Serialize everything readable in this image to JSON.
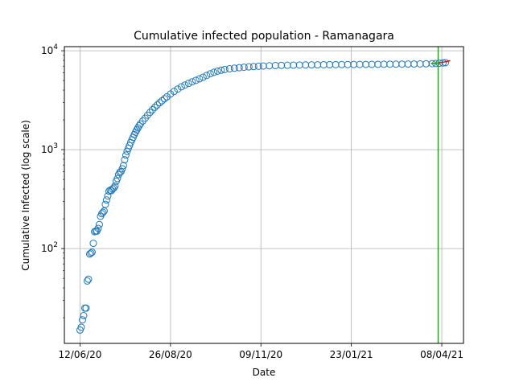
{
  "chart_data": {
    "type": "scatter",
    "title": "Cumulative infected population - Ramanagara",
    "xlabel": "Date",
    "ylabel": "Cumulative Infected (log scale)",
    "y_scale": "log",
    "y_tick_labels": [
      {
        "value": 100,
        "label": "10",
        "exp": "2"
      },
      {
        "value": 1000,
        "label": "10",
        "exp": "3"
      },
      {
        "value": 10000,
        "label": "10",
        "exp": "4"
      }
    ],
    "x_tick_labels": [
      {
        "value": "2020-06-12",
        "label": "12/06/20"
      },
      {
        "value": "2020-08-26",
        "label": "26/08/20"
      },
      {
        "value": "2020-11-09",
        "label": "09/11/20"
      },
      {
        "value": "2021-01-23",
        "label": "23/01/21"
      },
      {
        "value": "2021-04-08",
        "label": "08/04/21"
      }
    ],
    "xlim": [
      "2020-05-30",
      "2021-04-26"
    ],
    "ylim": [
      11,
      11000
    ],
    "grid": true,
    "colors": {
      "observed": "#1f77b4",
      "fit": "#ff0000",
      "marker_line": "#2ca02c",
      "grid": "#b0b0b0"
    },
    "series": [
      {
        "type": "scatter",
        "marker": "open-circle",
        "points": [
          [
            "2020-06-12",
            15
          ],
          [
            "2020-06-13",
            16
          ],
          [
            "2020-06-14",
            19
          ],
          [
            "2020-06-15",
            21
          ],
          [
            "2020-06-16",
            25
          ],
          [
            "2020-06-17",
            25
          ],
          [
            "2020-06-18",
            47
          ],
          [
            "2020-06-19",
            49
          ],
          [
            "2020-06-20",
            88
          ],
          [
            "2020-06-21",
            90
          ],
          [
            "2020-06-22",
            92
          ],
          [
            "2020-06-23",
            113
          ],
          [
            "2020-06-24",
            148
          ],
          [
            "2020-06-25",
            150
          ],
          [
            "2020-06-26",
            150
          ],
          [
            "2020-06-27",
            160
          ],
          [
            "2020-06-28",
            175
          ],
          [
            "2020-06-29",
            212
          ],
          [
            "2020-06-30",
            225
          ],
          [
            "2020-07-01",
            232
          ],
          [
            "2020-07-02",
            240
          ],
          [
            "2020-07-03",
            280
          ],
          [
            "2020-07-04",
            310
          ],
          [
            "2020-07-05",
            340
          ],
          [
            "2020-07-06",
            380
          ],
          [
            "2020-07-07",
            390
          ],
          [
            "2020-07-08",
            385
          ],
          [
            "2020-07-09",
            400
          ],
          [
            "2020-07-10",
            410
          ],
          [
            "2020-07-11",
            430
          ],
          [
            "2020-07-12",
            480
          ],
          [
            "2020-07-13",
            510
          ],
          [
            "2020-07-14",
            560
          ],
          [
            "2020-07-15",
            590
          ],
          [
            "2020-07-16",
            600
          ],
          [
            "2020-07-17",
            640
          ],
          [
            "2020-07-18",
            690
          ],
          [
            "2020-07-19",
            790
          ],
          [
            "2020-07-20",
            880
          ],
          [
            "2020-07-21",
            960
          ],
          [
            "2020-07-22",
            1030
          ],
          [
            "2020-07-23",
            1100
          ],
          [
            "2020-07-24",
            1180
          ],
          [
            "2020-07-25",
            1260
          ],
          [
            "2020-07-26",
            1330
          ],
          [
            "2020-07-27",
            1420
          ],
          [
            "2020-07-28",
            1500
          ],
          [
            "2020-07-29",
            1580
          ],
          [
            "2020-07-30",
            1660
          ],
          [
            "2020-07-31",
            1740
          ],
          [
            "2020-08-01",
            1820
          ],
          [
            "2020-08-03",
            1950
          ],
          [
            "2020-08-05",
            2080
          ],
          [
            "2020-08-07",
            2230
          ],
          [
            "2020-08-09",
            2380
          ],
          [
            "2020-08-11",
            2530
          ],
          [
            "2020-08-13",
            2680
          ],
          [
            "2020-08-15",
            2830
          ],
          [
            "2020-08-17",
            2980
          ],
          [
            "2020-08-19",
            3120
          ],
          [
            "2020-08-21",
            3270
          ],
          [
            "2020-08-23",
            3420
          ],
          [
            "2020-08-26",
            3650
          ],
          [
            "2020-08-29",
            3880
          ],
          [
            "2020-09-01",
            4100
          ],
          [
            "2020-09-04",
            4320
          ],
          [
            "2020-09-07",
            4500
          ],
          [
            "2020-09-10",
            4680
          ],
          [
            "2020-09-13",
            4850
          ],
          [
            "2020-09-16",
            5020
          ],
          [
            "2020-09-19",
            5200
          ],
          [
            "2020-09-22",
            5400
          ],
          [
            "2020-09-25",
            5620
          ],
          [
            "2020-09-28",
            5850
          ],
          [
            "2020-10-01",
            6050
          ],
          [
            "2020-10-04",
            6220
          ],
          [
            "2020-10-07",
            6360
          ],
          [
            "2020-10-10",
            6470
          ],
          [
            "2020-10-14",
            6570
          ],
          [
            "2020-10-18",
            6660
          ],
          [
            "2020-10-22",
            6740
          ],
          [
            "2020-10-26",
            6810
          ],
          [
            "2020-10-30",
            6870
          ],
          [
            "2020-11-03",
            6920
          ],
          [
            "2020-11-07",
            6970
          ],
          [
            "2020-11-11",
            7010
          ],
          [
            "2020-11-16",
            7050
          ],
          [
            "2020-11-21",
            7080
          ],
          [
            "2020-11-26",
            7110
          ],
          [
            "2020-12-01",
            7130
          ],
          [
            "2020-12-06",
            7150
          ],
          [
            "2020-12-11",
            7170
          ],
          [
            "2020-12-16",
            7185
          ],
          [
            "2020-12-21",
            7200
          ],
          [
            "2020-12-26",
            7210
          ],
          [
            "2020-12-31",
            7220
          ],
          [
            "2021-01-05",
            7230
          ],
          [
            "2021-01-10",
            7240
          ],
          [
            "2021-01-15",
            7248
          ],
          [
            "2021-01-20",
            7255
          ],
          [
            "2021-01-25",
            7262
          ],
          [
            "2021-01-30",
            7270
          ],
          [
            "2021-02-04",
            7278
          ],
          [
            "2021-02-09",
            7285
          ],
          [
            "2021-02-14",
            7292
          ],
          [
            "2021-02-19",
            7300
          ],
          [
            "2021-02-24",
            7308
          ],
          [
            "2021-03-01",
            7316
          ],
          [
            "2021-03-06",
            7325
          ],
          [
            "2021-03-11",
            7335
          ],
          [
            "2021-03-16",
            7345
          ],
          [
            "2021-03-21",
            7360
          ],
          [
            "2021-03-26",
            7380
          ],
          [
            "2021-03-31",
            7410
          ],
          [
            "2021-04-03",
            7440
          ],
          [
            "2021-04-06",
            7480
          ],
          [
            "2021-04-09",
            7530
          ],
          [
            "2021-04-11",
            7570
          ]
        ]
      },
      {
        "type": "line",
        "points": [
          [
            "2021-03-30",
            7420
          ],
          [
            "2021-04-05",
            7520
          ],
          [
            "2021-04-10",
            7680
          ],
          [
            "2021-04-15",
            7950
          ]
        ]
      },
      {
        "type": "line",
        "points": [
          [
            "2021-03-30",
            7440
          ],
          [
            "2021-04-03",
            7460
          ],
          [
            "2021-04-06",
            7490
          ]
        ]
      }
    ],
    "vertical_line": {
      "x": "2021-04-05"
    }
  }
}
